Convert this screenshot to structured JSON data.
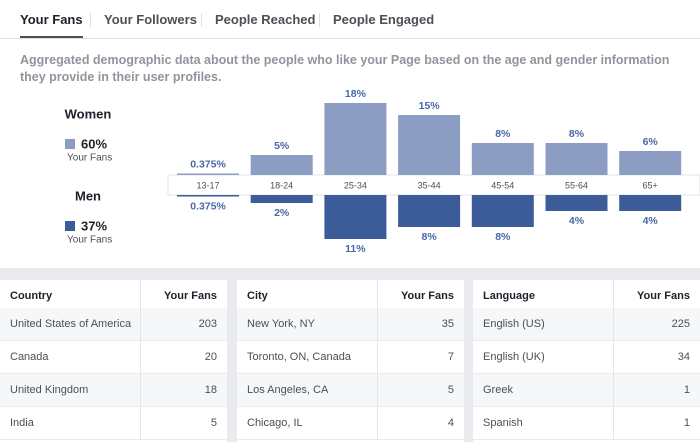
{
  "tabs": [
    "Your Fans",
    "Your Followers",
    "People Reached",
    "People Engaged"
  ],
  "description": "Aggregated demographic data about the people who like your Page based on the age and gender information they provide in their user profiles.",
  "chart_data": {
    "type": "bar",
    "categories": [
      "13-17",
      "18-24",
      "25-34",
      "35-44",
      "45-54",
      "55-64",
      "65+"
    ],
    "series": [
      {
        "name": "Women",
        "share": "60%",
        "caption": "Your Fans",
        "color": "#8b9dc3",
        "values": [
          0.375,
          5,
          18,
          15,
          8,
          8,
          6
        ],
        "value_labels": [
          "0.375%",
          "5%",
          "18%",
          "15%",
          "8%",
          "8%",
          "6%"
        ]
      },
      {
        "name": "Men",
        "share": "37%",
        "caption": "Your Fans",
        "color": "#3b5b99",
        "values": [
          0.375,
          2,
          11,
          8,
          8,
          4,
          4
        ],
        "value_labels": [
          "0.375%",
          "2%",
          "11%",
          "8%",
          "8%",
          "4%",
          "4%"
        ]
      }
    ]
  },
  "tables": [
    {
      "headers": [
        "Country",
        "Your Fans"
      ],
      "rows": [
        [
          "United States of America",
          203
        ],
        [
          "Canada",
          20
        ],
        [
          "United Kingdom",
          18
        ],
        [
          "India",
          5
        ]
      ]
    },
    {
      "headers": [
        "City",
        "Your Fans"
      ],
      "rows": [
        [
          "New York, NY",
          35
        ],
        [
          "Toronto, ON, Canada",
          7
        ],
        [
          "Los Angeles, CA",
          5
        ],
        [
          "Chicago, IL",
          4
        ]
      ]
    },
    {
      "headers": [
        "Language",
        "Your Fans"
      ],
      "rows": [
        [
          "English (US)",
          225
        ],
        [
          "English (UK)",
          34
        ],
        [
          "Greek",
          1
        ],
        [
          "Spanish",
          1
        ]
      ]
    }
  ]
}
